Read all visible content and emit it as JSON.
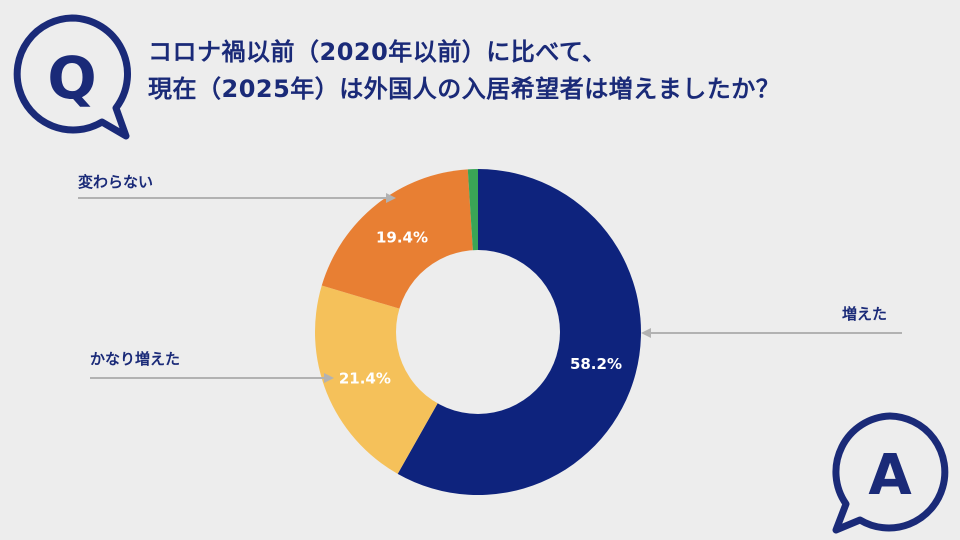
{
  "question": {
    "badge_letter": "Q",
    "line1": "コロナ禍以前（2020年以前）に比べて、",
    "line2": "現在（2025年）は外国人の入居希望者は増えましたか？"
  },
  "answer": {
    "badge_letter": "A"
  },
  "colors": {
    "navy": "#1a2a78",
    "increased": "#0e237d",
    "slightly_increased": "#f5c15a",
    "unchanged": "#e87f33",
    "other": "#3aa556",
    "leader_line": "#b2b2b2",
    "background": "#ededed"
  },
  "chart_data": {
    "type": "pie",
    "donut": true,
    "slices": [
      {
        "label": "増えた",
        "value": 58.2,
        "display": "58.2%",
        "color": "#0e237d"
      },
      {
        "label": "かなり増えた",
        "value": 21.4,
        "display": "21.4%",
        "color": "#f5c15a"
      },
      {
        "label": "変わらない",
        "value": 19.4,
        "display": "19.4%",
        "color": "#e87f33"
      },
      {
        "label": "",
        "value": 1.0,
        "display": "",
        "color": "#3aa556"
      }
    ]
  }
}
